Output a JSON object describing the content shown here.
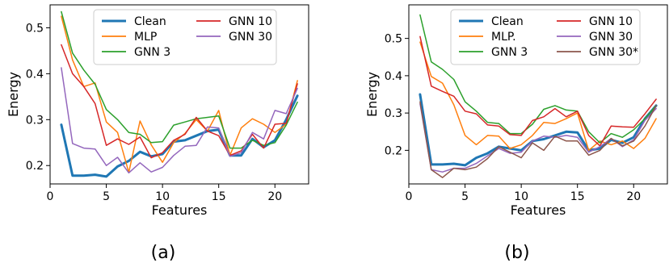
{
  "chart_data": [
    {
      "type": "line",
      "caption": "(a)",
      "xlabel": "Features",
      "ylabel": "Energy",
      "xlim": [
        0,
        23
      ],
      "ylim": [
        0.16,
        0.55
      ],
      "xticks": [
        0,
        5,
        10,
        15,
        20
      ],
      "yticks": [
        0.2,
        0.3,
        0.4,
        0.5
      ],
      "xtick_labels": [
        "0",
        "5",
        "10",
        "15",
        "20"
      ],
      "ytick_labels": [
        "0.2",
        "0.3",
        "0.4",
        "0.5"
      ],
      "grid": false,
      "legend": {
        "placement": "top-center",
        "columns": 2
      },
      "x": [
        1,
        2,
        3,
        4,
        5,
        6,
        7,
        8,
        9,
        10,
        11,
        12,
        13,
        14,
        15,
        16,
        17,
        18,
        19,
        20,
        21,
        22
      ],
      "series": [
        {
          "name": "Clean",
          "color": "#1f77b4",
          "width": 3,
          "values": [
            0.289,
            0.178,
            0.178,
            0.18,
            0.176,
            0.198,
            0.21,
            0.23,
            0.22,
            0.225,
            0.252,
            0.255,
            0.265,
            0.275,
            0.278,
            0.222,
            0.222,
            0.258,
            0.24,
            0.255,
            0.3,
            0.352
          ]
        },
        {
          "name": "MLP",
          "color": "#ff7f0e",
          "width": 1.5,
          "values": [
            0.525,
            0.43,
            0.372,
            0.38,
            0.295,
            0.272,
            0.185,
            0.297,
            0.245,
            0.207,
            0.25,
            0.27,
            0.3,
            0.275,
            0.32,
            0.222,
            0.282,
            0.302,
            0.29,
            0.272,
            0.29,
            0.385
          ]
        },
        {
          "name": "GNN 3",
          "color": "#2ca02c",
          "width": 1.5,
          "values": [
            0.535,
            0.445,
            0.408,
            0.377,
            0.322,
            0.3,
            0.272,
            0.268,
            0.25,
            0.252,
            0.288,
            0.295,
            0.302,
            0.305,
            0.308,
            0.238,
            0.238,
            0.255,
            0.244,
            0.25,
            0.288,
            0.338
          ]
        },
        {
          "name": "GNN 10",
          "color": "#d62728",
          "width": 1.5,
          "values": [
            0.463,
            0.4,
            0.372,
            0.335,
            0.244,
            0.258,
            0.246,
            0.262,
            0.217,
            0.228,
            0.255,
            0.268,
            0.305,
            0.275,
            0.265,
            0.222,
            0.232,
            0.268,
            0.238,
            0.29,
            0.292,
            0.378
          ]
        },
        {
          "name": "GNN 30",
          "color": "#9467bd",
          "width": 1.5,
          "values": [
            0.413,
            0.248,
            0.238,
            0.236,
            0.2,
            0.218,
            0.184,
            0.206,
            0.186,
            0.196,
            0.222,
            0.242,
            0.244,
            0.284,
            0.282,
            0.22,
            0.228,
            0.272,
            0.258,
            0.32,
            0.313,
            0.368
          ]
        }
      ]
    },
    {
      "type": "line",
      "caption": "(b)",
      "xlabel": "Features",
      "ylabel": "Energy",
      "xlim": [
        0,
        23
      ],
      "ylim": [
        0.11,
        0.59
      ],
      "xticks": [
        0,
        5,
        10,
        15,
        20
      ],
      "yticks": [
        0.2,
        0.3,
        0.4,
        0.5
      ],
      "xtick_labels": [
        "0",
        "5",
        "10",
        "15",
        "20"
      ],
      "ytick_labels": [
        "0.2",
        "0.3",
        "0.4",
        "0.5"
      ],
      "grid": false,
      "legend": {
        "placement": "top-center",
        "columns": 2
      },
      "x": [
        1,
        2,
        3,
        4,
        5,
        6,
        7,
        8,
        9,
        10,
        11,
        12,
        13,
        14,
        15,
        16,
        17,
        18,
        19,
        20,
        21,
        22
      ],
      "series": [
        {
          "name": "Clean",
          "color": "#1f77b4",
          "width": 3,
          "values": [
            0.35,
            0.162,
            0.162,
            0.164,
            0.16,
            0.18,
            0.192,
            0.21,
            0.205,
            0.2,
            0.225,
            0.23,
            0.24,
            0.25,
            0.248,
            0.2,
            0.205,
            0.228,
            0.22,
            0.235,
            0.285,
            0.32
          ]
        },
        {
          "name": "MLP.",
          "color": "#ff7f0e",
          "width": 1.5,
          "values": [
            0.49,
            0.398,
            0.38,
            0.322,
            0.24,
            0.215,
            0.24,
            0.238,
            0.205,
            0.215,
            0.24,
            0.275,
            0.272,
            0.285,
            0.3,
            0.2,
            0.225,
            0.215,
            0.225,
            0.205,
            0.232,
            0.285
          ]
        },
        {
          "name": "GNN 3",
          "color": "#2ca02c",
          "width": 1.5,
          "values": [
            0.563,
            0.437,
            0.417,
            0.39,
            0.33,
            0.305,
            0.275,
            0.272,
            0.245,
            0.245,
            0.27,
            0.31,
            0.32,
            0.308,
            0.305,
            0.25,
            0.22,
            0.245,
            0.235,
            0.255,
            0.285,
            0.32
          ]
        },
        {
          "name": "GNN 10",
          "color": "#d62728",
          "width": 1.5,
          "values": [
            0.505,
            0.372,
            0.358,
            0.345,
            0.305,
            0.298,
            0.268,
            0.265,
            0.242,
            0.24,
            0.28,
            0.29,
            0.312,
            0.29,
            0.305,
            0.24,
            0.212,
            0.265,
            0.263,
            0.262,
            0.298,
            0.337
          ]
        },
        {
          "name": "GNN 30",
          "color": "#9467bd",
          "width": 1.5,
          "values": [
            0.325,
            0.148,
            0.142,
            0.152,
            0.152,
            0.165,
            0.185,
            0.205,
            0.192,
            0.195,
            0.225,
            0.238,
            0.235,
            0.24,
            0.235,
            0.195,
            0.21,
            0.232,
            0.21,
            0.228,
            0.28,
            0.312
          ]
        },
        {
          "name": "GNN 30*",
          "color": "#8c564b",
          "width": 1.5,
          "values": [
            0.33,
            0.148,
            0.127,
            0.152,
            0.148,
            0.155,
            0.178,
            0.21,
            0.195,
            0.18,
            0.22,
            0.2,
            0.238,
            0.225,
            0.225,
            0.187,
            0.2,
            0.232,
            0.212,
            0.225,
            0.265,
            0.32
          ]
        }
      ]
    }
  ]
}
